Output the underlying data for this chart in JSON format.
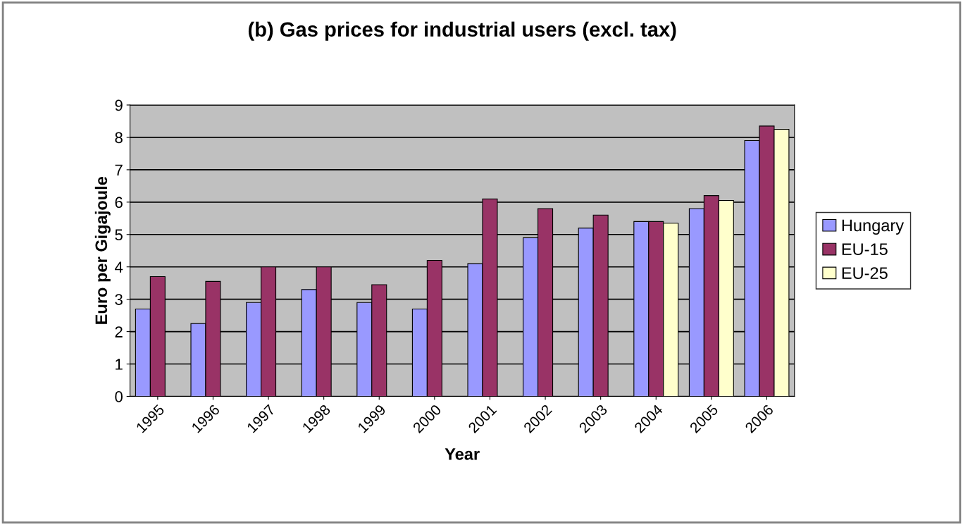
{
  "chart_data": {
    "type": "bar",
    "title": "(b) Gas prices for industrial users (excl. tax)",
    "xlabel": "Year",
    "ylabel": "Euro per Gigajoule",
    "categories": [
      "1995",
      "1996",
      "1997",
      "1998",
      "1999",
      "2000",
      "2001",
      "2002",
      "2003",
      "2004",
      "2005",
      "2006"
    ],
    "series": [
      {
        "name": "Hungary",
        "color": "#9999ff",
        "values": [
          2.7,
          2.25,
          2.9,
          3.3,
          2.9,
          2.7,
          4.1,
          4.9,
          5.2,
          5.4,
          5.8,
          7.9
        ]
      },
      {
        "name": "EU-15",
        "color": "#993366",
        "values": [
          3.7,
          3.55,
          4.0,
          4.0,
          3.45,
          4.2,
          6.1,
          5.8,
          5.6,
          5.4,
          6.2,
          8.35
        ]
      },
      {
        "name": "EU-25",
        "color": "#ffffcc",
        "values": [
          null,
          null,
          null,
          null,
          null,
          null,
          null,
          null,
          null,
          5.35,
          6.05,
          8.25
        ]
      }
    ],
    "ylim": [
      0,
      9
    ],
    "yticks": [
      0,
      1,
      2,
      3,
      4,
      5,
      6,
      7,
      8,
      9
    ],
    "grid": "y",
    "legend": "right"
  }
}
